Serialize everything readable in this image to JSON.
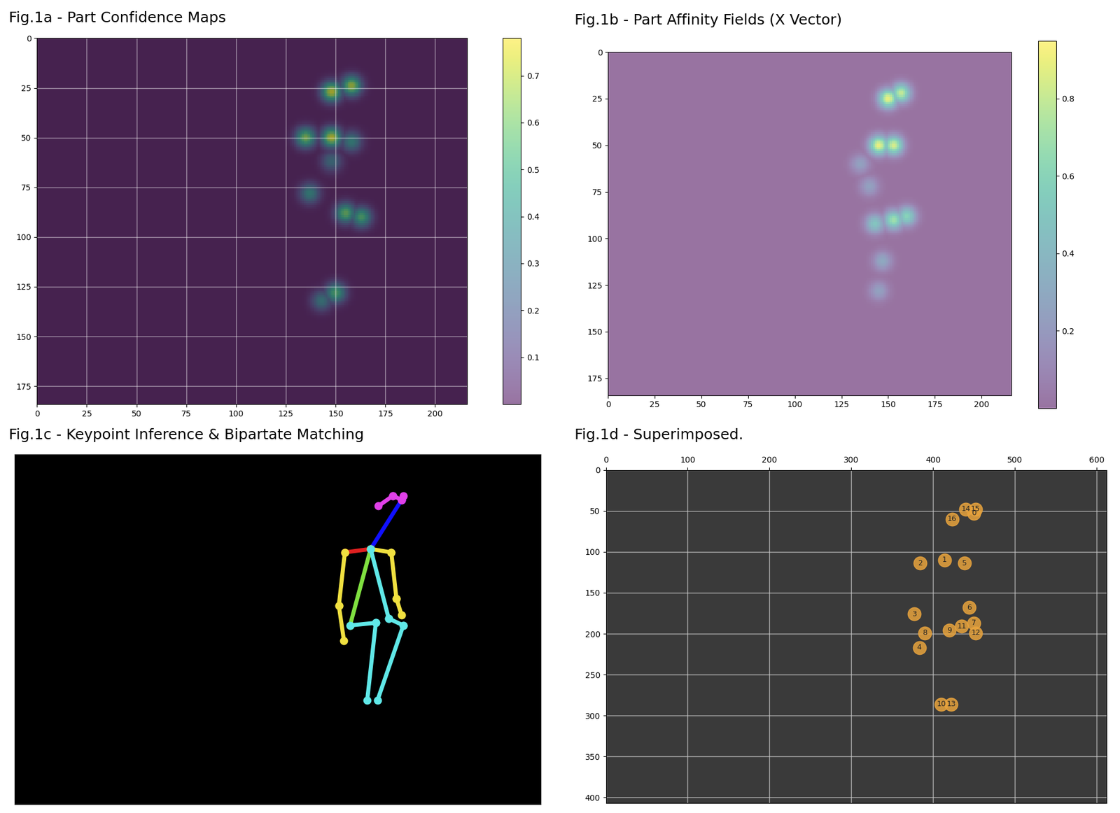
{
  "chart_data": [
    {
      "type": "heatmap",
      "title": "Fig.1a - Part Confidence Maps",
      "grid": true,
      "xlim": [
        0,
        216
      ],
      "ylim": [
        184,
        0
      ],
      "xticks": [
        0,
        25,
        50,
        75,
        100,
        125,
        150,
        175,
        200
      ],
      "yticks": [
        0,
        25,
        50,
        75,
        100,
        125,
        150,
        175
      ],
      "peaks": [
        {
          "x": 148,
          "y": 27,
          "value": 0.75
        },
        {
          "x": 158,
          "y": 24,
          "value": 0.7
        },
        {
          "x": 135,
          "y": 50,
          "value": 0.65
        },
        {
          "x": 148,
          "y": 50,
          "value": 0.75
        },
        {
          "x": 158,
          "y": 52,
          "value": 0.4
        },
        {
          "x": 148,
          "y": 62,
          "value": 0.3
        },
        {
          "x": 137,
          "y": 78,
          "value": 0.4
        },
        {
          "x": 155,
          "y": 88,
          "value": 0.6
        },
        {
          "x": 163,
          "y": 90,
          "value": 0.55
        },
        {
          "x": 150,
          "y": 128,
          "value": 0.55
        },
        {
          "x": 143,
          "y": 132,
          "value": 0.35
        }
      ],
      "colorbar_range": [
        0,
        0.78
      ],
      "colorbar_ticks": [
        0.1,
        0.2,
        0.3,
        0.4,
        0.5,
        0.6,
        0.7
      ]
    },
    {
      "type": "heatmap",
      "title": "Fig.1b - Part Affinity Fields (X Vector)",
      "grid": false,
      "xlim": [
        0,
        216
      ],
      "ylim": [
        184,
        0
      ],
      "xticks": [
        0,
        25,
        50,
        75,
        100,
        125,
        150,
        175,
        200
      ],
      "yticks": [
        0,
        25,
        50,
        75,
        100,
        125,
        150,
        175
      ],
      "peaks": [
        {
          "x": 150,
          "y": 25,
          "value": 0.9
        },
        {
          "x": 157,
          "y": 22,
          "value": 0.8
        },
        {
          "x": 145,
          "y": 50,
          "value": 0.9
        },
        {
          "x": 153,
          "y": 50,
          "value": 0.85
        },
        {
          "x": 135,
          "y": 60,
          "value": 0.25
        },
        {
          "x": 140,
          "y": 72,
          "value": 0.25
        },
        {
          "x": 153,
          "y": 90,
          "value": 0.7
        },
        {
          "x": 143,
          "y": 92,
          "value": 0.5
        },
        {
          "x": 160,
          "y": 88,
          "value": 0.6
        },
        {
          "x": 147,
          "y": 112,
          "value": 0.3
        },
        {
          "x": 145,
          "y": 128,
          "value": 0.25
        }
      ],
      "colorbar_range": [
        0,
        0.95
      ],
      "colorbar_ticks": [
        0.2,
        0.4,
        0.6,
        0.8
      ]
    },
    {
      "type": "skeleton",
      "title": "Fig.1c - Keypoint Inference & Bipartate Matching",
      "tick_labels": false,
      "xlim": [
        0,
        612
      ],
      "ylim": [
        407,
        0
      ],
      "x": [
        450,
        414,
        384,
        377,
        383,
        438,
        444,
        450,
        390,
        420,
        410,
        435,
        452,
        422,
        440,
        452,
        423
      ],
      "y": [
        53,
        110,
        114,
        176,
        217,
        114,
        168,
        187,
        199,
        196,
        286,
        191,
        199,
        286,
        48,
        48,
        60
      ],
      "limbs": [
        {
          "from": 0,
          "to": 1,
          "color": "#1010ff"
        },
        {
          "from": 1,
          "to": 2,
          "color": "#e02020"
        },
        {
          "from": 1,
          "to": 5,
          "color": "#f0e040"
        },
        {
          "from": 2,
          "to": 3,
          "color": "#f0e040"
        },
        {
          "from": 3,
          "to": 4,
          "color": "#f0e040"
        },
        {
          "from": 5,
          "to": 6,
          "color": "#f0e040"
        },
        {
          "from": 6,
          "to": 7,
          "color": "#f0e040"
        },
        {
          "from": 1,
          "to": 8,
          "color": "#80e040"
        },
        {
          "from": 1,
          "to": 11,
          "color": "#60e8e8"
        },
        {
          "from": 8,
          "to": 9,
          "color": "#60e8e8"
        },
        {
          "from": 9,
          "to": 10,
          "color": "#60e8e8"
        },
        {
          "from": 11,
          "to": 12,
          "color": "#60e8e8"
        },
        {
          "from": 12,
          "to": 13,
          "color": "#60e8e8"
        },
        {
          "from": 0,
          "to": 14,
          "color": "#e040e8"
        },
        {
          "from": 14,
          "to": 16,
          "color": "#e040e8"
        },
        {
          "from": 0,
          "to": 15,
          "color": "#e040e8"
        }
      ]
    },
    {
      "type": "scatter",
      "title": "Fig.1d - Superimposed.",
      "grid": true,
      "color": "#e8a33d",
      "xlim": [
        0,
        612
      ],
      "ylim": [
        407,
        0
      ],
      "xticks": [
        0,
        100,
        200,
        300,
        400,
        500,
        600
      ],
      "yticks": [
        0,
        50,
        100,
        150,
        200,
        250,
        300,
        350,
        400
      ],
      "x": [
        450,
        414,
        384,
        377,
        383,
        438,
        444,
        450,
        390,
        420,
        410,
        435,
        452,
        422,
        440,
        452,
        423
      ],
      "y": [
        53,
        110,
        114,
        176,
        217,
        114,
        168,
        187,
        199,
        196,
        286,
        191,
        199,
        286,
        48,
        48,
        60
      ],
      "labels": [
        "0",
        "1",
        "2",
        "3",
        "4",
        "5",
        "6",
        "7",
        "8",
        "9",
        "10",
        "11",
        "12",
        "13",
        "14",
        "15",
        "16"
      ]
    }
  ]
}
